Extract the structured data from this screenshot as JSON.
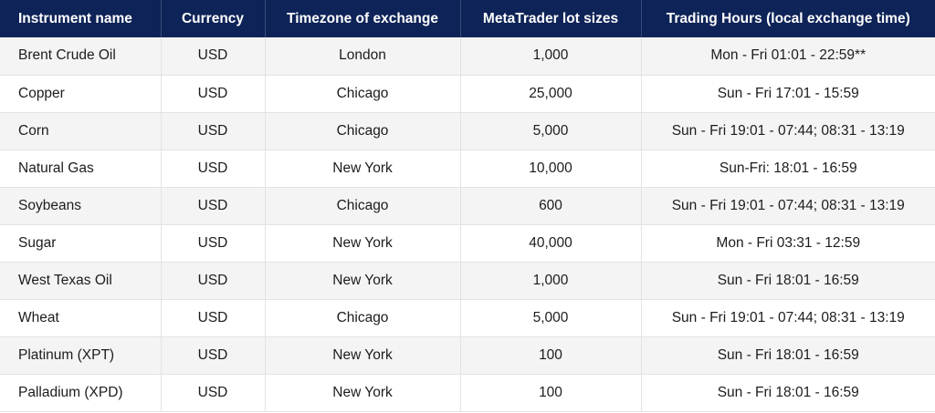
{
  "table": {
    "headers": [
      "Instrument name",
      "Currency",
      "Timezone of exchange",
      "MetaTrader lot sizes",
      "Trading Hours (local exchange time)"
    ],
    "rows": [
      [
        "Brent Crude Oil",
        "USD",
        "London",
        "1,000",
        "Mon - Fri 01:01 - 22:59**"
      ],
      [
        "Copper",
        "USD",
        "Chicago",
        "25,000",
        "Sun - Fri 17:01 - 15:59"
      ],
      [
        "Corn",
        "USD",
        "Chicago",
        "5,000",
        "Sun - Fri 19:01 - 07:44; 08:31 - 13:19"
      ],
      [
        "Natural Gas",
        "USD",
        "New York",
        "10,000",
        "Sun-Fri: 18:01 - 16:59"
      ],
      [
        "Soybeans",
        "USD",
        "Chicago",
        "600",
        "Sun - Fri 19:01 - 07:44; 08:31 - 13:19"
      ],
      [
        "Sugar",
        "USD",
        "New York",
        "40,000",
        "Mon - Fri 03:31 - 12:59"
      ],
      [
        "West Texas Oil",
        "USD",
        "New York",
        "1,000",
        "Sun - Fri 18:01 - 16:59"
      ],
      [
        "Wheat",
        "USD",
        "Chicago",
        "5,000",
        "Sun - Fri 19:01 - 07:44; 08:31 - 13:19"
      ],
      [
        "Platinum (XPT)",
        "USD",
        "New York",
        "100",
        "Sun - Fri 18:01 - 16:59"
      ],
      [
        "Palladium (XPD)",
        "USD",
        "New York",
        "100",
        "Sun - Fri 18:01 - 16:59"
      ]
    ]
  },
  "colors": {
    "header_bg": "#0e2357",
    "header_text": "#ffffff",
    "row_shade": "#f4f4f4",
    "row_plain": "#ffffff",
    "border": "#e3e3e3"
  }
}
